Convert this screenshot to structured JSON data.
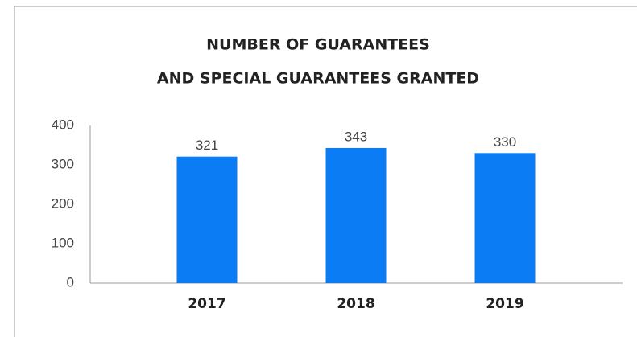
{
  "chart_data": {
    "type": "bar",
    "title": [
      "NUMBER OF GUARANTEES",
      "AND SPECIAL GUARANTEES GRANTED"
    ],
    "categories": [
      "2017",
      "2018",
      "2019"
    ],
    "values": [
      321,
      343,
      330
    ],
    "color": "#0b7cf4",
    "ylim": [
      0,
      400
    ],
    "yticks": [
      0,
      100,
      200,
      300,
      400
    ],
    "grid": false
  }
}
